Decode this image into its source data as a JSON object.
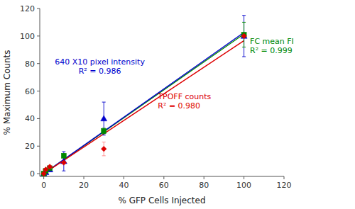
{
  "chart_data": {
    "type": "scatter",
    "xlabel": "% GFP Cells Injected",
    "ylabel": "% Maximum Counts",
    "xlim": [
      -2,
      120
    ],
    "ylim": [
      -2,
      120
    ],
    "xticks": [
      0,
      20,
      40,
      60,
      80,
      100,
      120
    ],
    "yticks": [
      0,
      20,
      40,
      60,
      80,
      100,
      120
    ],
    "grid": false,
    "series": [
      {
        "type": "line",
        "color": "#008800",
        "x": [
          0,
          100
        ],
        "values": [
          0,
          101.48955495
        ]
      },
      {
        "type": "line",
        "color": "#0000CC",
        "x": [
          0,
          100
        ],
        "values": [
          0,
          102.633969119
        ]
      },
      {
        "type": "line",
        "color": "#DD0000",
        "x": [
          0,
          100
        ],
        "values": [
          0,
          96.62125341
        ]
      },
      {
        "type": "scatter",
        "color": "#0000CC",
        "marker": "triangle",
        "x": [
          0,
          1,
          3,
          10,
          30,
          100
        ],
        "values": [
          0,
          1,
          3,
          9,
          40,
          100
        ],
        "errors": [
          0.0,
          0.5,
          1.0,
          7.0,
          12.0,
          15.0
        ]
      },
      {
        "type": "scatter",
        "color": "#008800",
        "marker": "square",
        "x": [
          0,
          1,
          3,
          10,
          30,
          100
        ],
        "values": [
          0,
          2,
          4,
          13,
          31,
          101
        ],
        "errors": [
          0.0,
          0.5,
          1.0,
          1.5,
          2.0,
          9.0
        ]
      },
      {
        "type": "scatter",
        "color": "#DD0000",
        "error_color": "#FF8888",
        "marker": "diamond",
        "x": [
          0,
          1,
          3,
          10,
          30,
          100
        ],
        "values": [
          0,
          3,
          5,
          8,
          18,
          100
        ],
        "errors": [
          0.0,
          0.5,
          1.0,
          1.0,
          5.0,
          0.0
        ]
      }
    ],
    "annotations": [
      {
        "lines": [
          "640 X10 pixel intensity",
          "R² = 0.986"
        ],
        "x": 28,
        "y": 78,
        "color": "#0000CC",
        "align": "center"
      },
      {
        "lines": [
          "TPOFF counts",
          "R² = 0.980"
        ],
        "x": 57,
        "y": 53,
        "color": "#DD0000",
        "align": "left"
      },
      {
        "lines": [
          "FC mean FI",
          "R² = 0.999"
        ],
        "x": 103,
        "y": 93,
        "color": "#008800",
        "align": "left"
      }
    ]
  }
}
